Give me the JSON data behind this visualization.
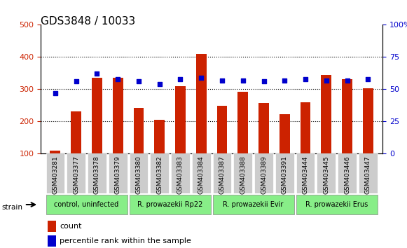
{
  "title": "GDS3848 / 10033",
  "samples": [
    "GSM403281",
    "GSM403377",
    "GSM403378",
    "GSM403379",
    "GSM403380",
    "GSM403382",
    "GSM403383",
    "GSM403384",
    "GSM403387",
    "GSM403388",
    "GSM403389",
    "GSM403391",
    "GSM403444",
    "GSM403445",
    "GSM403446",
    "GSM403447"
  ],
  "counts": [
    110,
    232,
    335,
    336,
    242,
    205,
    310,
    410,
    248,
    293,
    258,
    222,
    260,
    345,
    332,
    303
  ],
  "percentiles": [
    47,
    56,
    62,
    58,
    56,
    54,
    58,
    59,
    57,
    57,
    56,
    57,
    58,
    57,
    57,
    58
  ],
  "groups": [
    {
      "label": "control, uninfected",
      "start": 0,
      "end": 3,
      "color": "#aaffaa"
    },
    {
      "label": "R. prowazekii Rp22",
      "start": 4,
      "end": 7,
      "color": "#aaffaa"
    },
    {
      "label": "R. prowazekii Evir",
      "start": 8,
      "end": 11,
      "color": "#aaffaa"
    },
    {
      "label": "R. prowazekii Erus",
      "start": 12,
      "end": 15,
      "color": "#aaffaa"
    }
  ],
  "bar_color": "#cc2200",
  "dot_color": "#0000cc",
  "left_ylim": [
    100,
    500
  ],
  "right_ylim": [
    0,
    100
  ],
  "left_yticks": [
    100,
    200,
    300,
    400,
    500
  ],
  "right_yticks": [
    0,
    25,
    50,
    75,
    100
  ],
  "right_yticklabels": [
    "0",
    "25",
    "50",
    "75",
    "100%"
  ],
  "bg_plot": "#ffffff",
  "bg_xticklabels": "#dddddd",
  "grid_color": "#000000",
  "title_fontsize": 11,
  "tick_fontsize": 8,
  "label_fontsize": 8
}
